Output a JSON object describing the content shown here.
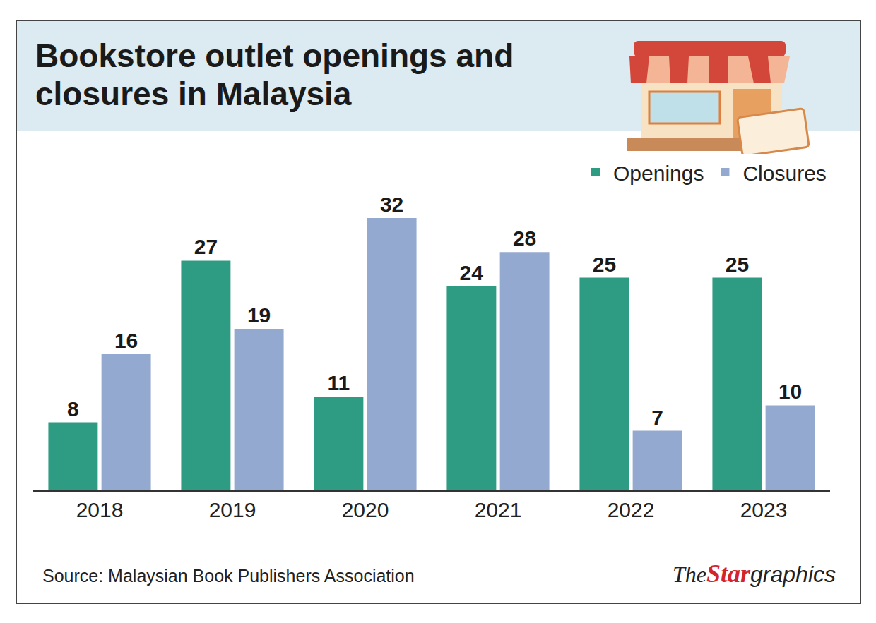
{
  "chart_data": {
    "type": "bar",
    "title": "Bookstore outlet openings and closures in Malaysia",
    "categories": [
      "2018",
      "2019",
      "2020",
      "2021",
      "2022",
      "2023"
    ],
    "series": [
      {
        "name": "Openings",
        "color": "#2e9c82",
        "values": [
          8,
          27,
          11,
          24,
          25,
          25
        ]
      },
      {
        "name": "Closures",
        "color": "#94a9cf",
        "values": [
          16,
          19,
          32,
          28,
          7,
          10
        ]
      }
    ],
    "ylim": [
      0,
      34
    ],
    "data_labels": true,
    "tick_labels": "x",
    "grid": false,
    "legend": "top right",
    "source": "Source: Malaysian Book Publishers Association",
    "credit": "The Star graphics"
  }
}
